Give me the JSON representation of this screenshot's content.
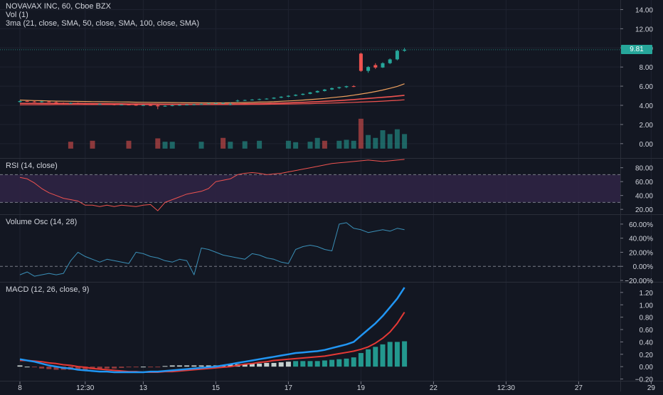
{
  "header": {
    "symbol_line": "NOVAVAX INC, 60, Cboe BZX",
    "volume_line": "Vol (1)",
    "ma_line": "3ma (21, close, SMA, 50, close, SMA, 100, close, SMA)",
    "last_price": "9.81"
  },
  "colors": {
    "up": "#26a69a",
    "down": "#ef5350",
    "ma21": "#ef5350",
    "ma50": "#ef5350",
    "ma100": "#f0a25f",
    "rsi_line": "#ef5350",
    "rsi_band": "#2f2344",
    "vol_osc_line": "#3a8fb7",
    "macd_line": "#2196f3",
    "signal_line": "#e53935",
    "hist_up": "#26a69a",
    "hist_down": "#ef5350",
    "hist_light": "#d8e3e0"
  },
  "chart_data": [
    {
      "type": "candlestick",
      "name": "price",
      "y_ticks": [
        "14.00",
        "12.00",
        "10.00",
        "8.00",
        "6.00",
        "4.00",
        "2.00",
        "0.00"
      ],
      "ylim": [
        -1.5,
        15
      ],
      "ohlc": [
        [
          4.35,
          4.5,
          4.3,
          4.45
        ],
        [
          4.45,
          4.5,
          4.35,
          4.4
        ],
        [
          4.4,
          4.5,
          4.3,
          4.35
        ],
        [
          4.35,
          4.45,
          4.3,
          4.4
        ],
        [
          4.4,
          4.45,
          4.3,
          4.32
        ],
        [
          4.32,
          4.4,
          4.2,
          4.25
        ],
        [
          4.25,
          4.3,
          4.15,
          4.2
        ],
        [
          4.2,
          4.3,
          4.15,
          4.25
        ],
        [
          4.25,
          4.3,
          4.15,
          4.2
        ],
        [
          4.2,
          4.25,
          4.1,
          4.15
        ],
        [
          4.15,
          4.2,
          4.05,
          4.1
        ],
        [
          4.1,
          4.2,
          4.05,
          4.15
        ],
        [
          4.15,
          4.2,
          4.05,
          4.1
        ],
        [
          4.1,
          4.15,
          4.0,
          4.05
        ],
        [
          4.05,
          4.1,
          4.0,
          4.08
        ],
        [
          4.08,
          4.15,
          4.0,
          4.05
        ],
        [
          4.05,
          4.1,
          3.95,
          4.0
        ],
        [
          4.0,
          4.08,
          3.95,
          4.02
        ],
        [
          4.02,
          4.08,
          3.95,
          3.98
        ],
        [
          4.0,
          4.1,
          3.6,
          3.9
        ],
        [
          3.9,
          4.0,
          3.85,
          3.95
        ],
        [
          3.95,
          4.05,
          3.9,
          4.0
        ],
        [
          4.0,
          4.08,
          3.95,
          4.05
        ],
        [
          4.05,
          4.12,
          4.0,
          4.08
        ],
        [
          4.08,
          4.15,
          4.0,
          4.1
        ],
        [
          4.1,
          4.2,
          4.05,
          4.15
        ],
        [
          4.15,
          4.25,
          4.1,
          4.2
        ],
        [
          4.2,
          4.28,
          4.15,
          4.22
        ],
        [
          4.22,
          4.3,
          4.15,
          4.25
        ],
        [
          4.1,
          4.3,
          4.0,
          4.15
        ],
        [
          4.45,
          4.6,
          4.35,
          4.5
        ],
        [
          4.5,
          4.6,
          4.45,
          4.55
        ],
        [
          4.55,
          4.65,
          4.5,
          4.6
        ],
        [
          4.6,
          4.7,
          4.55,
          4.65
        ],
        [
          4.65,
          4.75,
          4.6,
          4.7
        ],
        [
          4.7,
          4.85,
          4.65,
          4.8
        ],
        [
          4.8,
          4.95,
          4.75,
          4.9
        ],
        [
          4.9,
          5.05,
          4.85,
          5.0
        ],
        [
          5.0,
          5.15,
          4.95,
          5.1
        ],
        [
          5.1,
          5.25,
          5.05,
          5.2
        ],
        [
          5.2,
          5.4,
          5.15,
          5.35
        ],
        [
          5.35,
          5.55,
          5.3,
          5.5
        ],
        [
          5.5,
          5.7,
          5.45,
          5.65
        ],
        [
          5.65,
          5.85,
          5.6,
          5.8
        ],
        [
          5.8,
          5.95,
          5.7,
          5.9
        ],
        [
          5.9,
          6.05,
          5.8,
          6.0
        ],
        [
          6.0,
          6.1,
          5.9,
          5.95
        ],
        [
          9.4,
          9.5,
          7.5,
          7.6
        ],
        [
          7.6,
          8.1,
          7.4,
          8.0
        ],
        [
          8.2,
          8.4,
          7.8,
          7.95
        ],
        [
          7.95,
          8.5,
          7.9,
          8.4
        ],
        [
          8.4,
          8.9,
          8.3,
          8.8
        ],
        [
          8.8,
          9.8,
          8.7,
          9.7
        ],
        [
          9.7,
          10.0,
          9.6,
          9.81
        ]
      ],
      "ma21": [
        4.2,
        4.2,
        4.2,
        4.2,
        4.2,
        4.2,
        4.2,
        4.2,
        4.2,
        4.18,
        4.18,
        4.17,
        4.17,
        4.16,
        4.16,
        4.15,
        4.15,
        4.14,
        4.14,
        4.13,
        4.12,
        4.12,
        4.12,
        4.12,
        4.12,
        4.12,
        4.13,
        4.13,
        4.14,
        4.14,
        4.15,
        4.16,
        4.17,
        4.18,
        4.2,
        4.22,
        4.24,
        4.26,
        4.29,
        4.31,
        4.35,
        4.38,
        4.42,
        4.46,
        4.5,
        4.55,
        4.6,
        4.66,
        4.72,
        4.78,
        4.84,
        4.9,
        4.97,
        5.05
      ],
      "ma50": [
        4.05,
        4.06,
        4.06,
        4.07,
        4.07,
        4.08,
        4.08,
        4.08,
        4.08,
        4.08,
        4.08,
        4.08,
        4.08,
        4.08,
        4.08,
        4.08,
        4.08,
        4.08,
        4.08,
        4.08,
        4.08,
        4.08,
        4.08,
        4.08,
        4.08,
        4.08,
        4.08,
        4.08,
        4.08,
        4.08,
        4.09,
        4.09,
        4.1,
        4.1,
        4.11,
        4.12,
        4.13,
        4.14,
        4.15,
        4.16,
        4.18,
        4.2,
        4.22,
        4.24,
        4.26,
        4.28,
        4.31,
        4.34,
        4.37,
        4.4,
        4.44,
        4.48,
        4.52,
        4.58
      ],
      "ma100": [
        4.55,
        4.52,
        4.5,
        4.48,
        4.46,
        4.44,
        4.43,
        4.42,
        4.41,
        4.4,
        4.39,
        4.38,
        4.37,
        4.36,
        4.35,
        4.34,
        4.33,
        4.32,
        4.31,
        4.3,
        4.3,
        4.29,
        4.28,
        4.27,
        4.27,
        4.26,
        4.26,
        4.26,
        4.26,
        4.27,
        4.28,
        4.3,
        4.32,
        4.34,
        4.36,
        4.38,
        4.42,
        4.46,
        4.5,
        4.55,
        4.6,
        4.66,
        4.72,
        4.8,
        4.88,
        4.96,
        5.06,
        5.18,
        5.3,
        5.44,
        5.6,
        5.78,
        5.98,
        6.25
      ],
      "volume_bars": [
        {
          "i": 7,
          "v": 0.2,
          "dir": "down"
        },
        {
          "i": 10,
          "v": 0.3,
          "dir": "down"
        },
        {
          "i": 15,
          "v": 0.3,
          "dir": "down"
        },
        {
          "i": 19,
          "v": 0.55,
          "dir": "down"
        },
        {
          "i": 20,
          "v": 0.2,
          "dir": "up"
        },
        {
          "i": 21,
          "v": 0.2,
          "dir": "up"
        },
        {
          "i": 25,
          "v": 0.2,
          "dir": "up"
        },
        {
          "i": 28,
          "v": 0.6,
          "dir": "down"
        },
        {
          "i": 29,
          "v": 0.2,
          "dir": "up"
        },
        {
          "i": 31,
          "v": 0.25,
          "dir": "up"
        },
        {
          "i": 33,
          "v": 0.3,
          "dir": "up"
        },
        {
          "i": 37,
          "v": 0.3,
          "dir": "up"
        },
        {
          "i": 38,
          "v": 0.15,
          "dir": "up"
        },
        {
          "i": 40,
          "v": 0.2,
          "dir": "up"
        },
        {
          "i": 41,
          "v": 0.6,
          "dir": "up"
        },
        {
          "i": 42,
          "v": 0.3,
          "dir": "down"
        },
        {
          "i": 44,
          "v": 0.3,
          "dir": "up"
        },
        {
          "i": 45,
          "v": 0.4,
          "dir": "up"
        },
        {
          "i": 46,
          "v": 0.3,
          "dir": "up"
        },
        {
          "i": 47,
          "v": 2.6,
          "dir": "down"
        },
        {
          "i": 48,
          "v": 0.9,
          "dir": "up"
        },
        {
          "i": 49,
          "v": 0.6,
          "dir": "up"
        },
        {
          "i": 50,
          "v": 1.4,
          "dir": "up"
        },
        {
          "i": 51,
          "v": 1.0,
          "dir": "up"
        },
        {
          "i": 52,
          "v": 1.5,
          "dir": "up"
        },
        {
          "i": 53,
          "v": 1.0,
          "dir": "up"
        }
      ]
    },
    {
      "type": "line",
      "name": "rsi",
      "title": "RSI (14, close)",
      "y_ticks": [
        "80.00",
        "60.00",
        "40.00",
        "20.00"
      ],
      "ylim": [
        13,
        93
      ],
      "band": [
        30,
        70
      ],
      "values": [
        66,
        64,
        58,
        50,
        44,
        40,
        36,
        34,
        32,
        26,
        26,
        24,
        26,
        24,
        26,
        25,
        24,
        26,
        27,
        18,
        30,
        34,
        38,
        42,
        44,
        46,
        50,
        60,
        62,
        64,
        70,
        72,
        73,
        72,
        70,
        71,
        72,
        74,
        76,
        78,
        80,
        82,
        84,
        86,
        87,
        88,
        89,
        90,
        91,
        90,
        89,
        90,
        91,
        92
      ]
    },
    {
      "type": "line",
      "name": "volume_osc",
      "title": "Volume Osc (14, 28)",
      "y_ticks": [
        "60.00%",
        "40.00%",
        "20.00%",
        "0.00%",
        "−20.00%"
      ],
      "ylim": [
        -22,
        73
      ],
      "zero_line": 0,
      "values": [
        -12,
        -8,
        -14,
        -12,
        -10,
        -12,
        -10,
        8,
        20,
        14,
        10,
        6,
        10,
        8,
        6,
        4,
        20,
        18,
        14,
        12,
        8,
        6,
        10,
        8,
        -12,
        26,
        24,
        20,
        16,
        14,
        12,
        10,
        18,
        16,
        12,
        10,
        6,
        4,
        24,
        28,
        30,
        28,
        24,
        22,
        60,
        62,
        54,
        52,
        48,
        50,
        52,
        50,
        54,
        52
      ]
    },
    {
      "type": "line",
      "name": "macd",
      "title": "MACD (12, 26, close, 9)",
      "y_ticks": [
        "1.20",
        "1.00",
        "0.80",
        "0.60",
        "0.40",
        "0.20",
        "0.00",
        "−0.20"
      ],
      "ylim": [
        -0.24,
        1.36
      ],
      "macd": [
        0.12,
        0.1,
        0.08,
        0.05,
        0.02,
        0.0,
        -0.02,
        -0.03,
        -0.05,
        -0.06,
        -0.07,
        -0.08,
        -0.08,
        -0.09,
        -0.09,
        -0.09,
        -0.09,
        -0.09,
        -0.08,
        -0.08,
        -0.07,
        -0.06,
        -0.05,
        -0.04,
        -0.03,
        -0.02,
        -0.01,
        0.0,
        0.02,
        0.04,
        0.06,
        0.08,
        0.1,
        0.12,
        0.14,
        0.16,
        0.18,
        0.2,
        0.22,
        0.23,
        0.24,
        0.25,
        0.27,
        0.3,
        0.33,
        0.36,
        0.4,
        0.5,
        0.6,
        0.7,
        0.82,
        0.96,
        1.1,
        1.28
      ],
      "signal": [
        0.1,
        0.1,
        0.09,
        0.08,
        0.06,
        0.05,
        0.03,
        0.02,
        0.0,
        -0.01,
        -0.03,
        -0.04,
        -0.05,
        -0.06,
        -0.07,
        -0.08,
        -0.08,
        -0.09,
        -0.09,
        -0.09,
        -0.08,
        -0.08,
        -0.07,
        -0.06,
        -0.05,
        -0.04,
        -0.03,
        -0.02,
        -0.01,
        0.0,
        0.02,
        0.04,
        0.05,
        0.07,
        0.08,
        0.1,
        0.11,
        0.12,
        0.13,
        0.14,
        0.15,
        0.16,
        0.17,
        0.19,
        0.21,
        0.23,
        0.25,
        0.28,
        0.32,
        0.38,
        0.46,
        0.56,
        0.7,
        0.88
      ],
      "histogram": [
        0.02,
        0.0,
        -0.01,
        -0.03,
        -0.04,
        -0.05,
        -0.05,
        -0.05,
        -0.05,
        -0.05,
        -0.04,
        -0.04,
        -0.03,
        -0.03,
        -0.02,
        -0.01,
        -0.01,
        0.0,
        -0.01,
        -0.01,
        0.01,
        0.02,
        0.02,
        0.02,
        0.02,
        0.02,
        0.02,
        0.02,
        0.03,
        0.04,
        0.04,
        0.04,
        0.05,
        0.05,
        0.06,
        0.06,
        0.07,
        0.08,
        0.09,
        0.09,
        0.09,
        0.09,
        0.1,
        0.11,
        0.12,
        0.13,
        0.15,
        0.22,
        0.28,
        0.32,
        0.36,
        0.4,
        0.4,
        0.41
      ]
    }
  ],
  "x_axis": {
    "labels": [
      {
        "i": 0,
        "text": "8"
      },
      {
        "i": 9,
        "text": "12:30"
      },
      {
        "i": 17,
        "text": "13"
      },
      {
        "i": 27,
        "text": "15"
      },
      {
        "i": 37,
        "text": "17"
      },
      {
        "i": 47,
        "text": "19"
      },
      {
        "i": 57,
        "text": "22"
      },
      {
        "i": 67,
        "text": "12:30"
      },
      {
        "i": 77,
        "text": "27"
      },
      {
        "i": 87,
        "text": "29"
      }
    ]
  }
}
